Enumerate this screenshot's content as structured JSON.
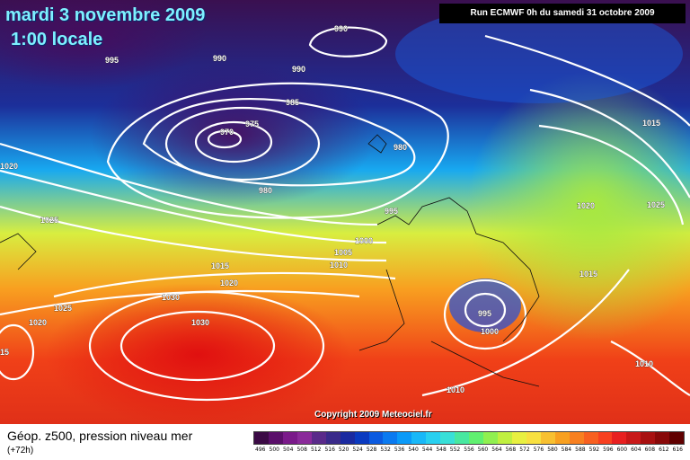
{
  "header": {
    "date": "mardi 3 novembre 2009",
    "local_time": "1:00 locale",
    "run": "Run ECMWF 0h du samedi 31 octobre 2009"
  },
  "map": {
    "copyright": "Copyright 2009 Meteociel.fr",
    "contour_labels": [
      "990",
      "995",
      "990",
      "990",
      "985",
      "975",
      "970",
      "980",
      "980",
      "995",
      "1000",
      "1005",
      "1010",
      "1015",
      "1020",
      "1025",
      "1030",
      "1030",
      "1025",
      "1020",
      "15",
      "1020",
      "1015",
      "1020",
      "1025",
      "1015",
      "995",
      "1000",
      "1010",
      "1010"
    ]
  },
  "legend": {
    "title": "Géop. z500, pression niveau mer",
    "subtitle": "(+72h)",
    "ticks": [
      "496",
      "500",
      "504",
      "508",
      "512",
      "516",
      "520",
      "524",
      "528",
      "532",
      "536",
      "540",
      "544",
      "548",
      "552",
      "556",
      "560",
      "564",
      "568",
      "572",
      "576",
      "580",
      "584",
      "588",
      "592",
      "596",
      "600",
      "604",
      "608",
      "612",
      "616"
    ],
    "colors": [
      "#3b0a45",
      "#5a0f6a",
      "#7a1a8a",
      "#8a2a9a",
      "#5a2a8a",
      "#3a2a8a",
      "#1a2aa0",
      "#0a3ac0",
      "#0a5ae0",
      "#0a7af0",
      "#0a9af8",
      "#18b8f8",
      "#28d0f0",
      "#38e0d8",
      "#48e8a0",
      "#60f070",
      "#90f050",
      "#c0f040",
      "#e8f040",
      "#f8e040",
      "#f8c030",
      "#f8a020",
      "#f88020",
      "#f86020",
      "#f84020",
      "#e82020",
      "#c81818",
      "#a81010",
      "#880808",
      "#600000"
    ],
    "tick_color": "#000000"
  }
}
